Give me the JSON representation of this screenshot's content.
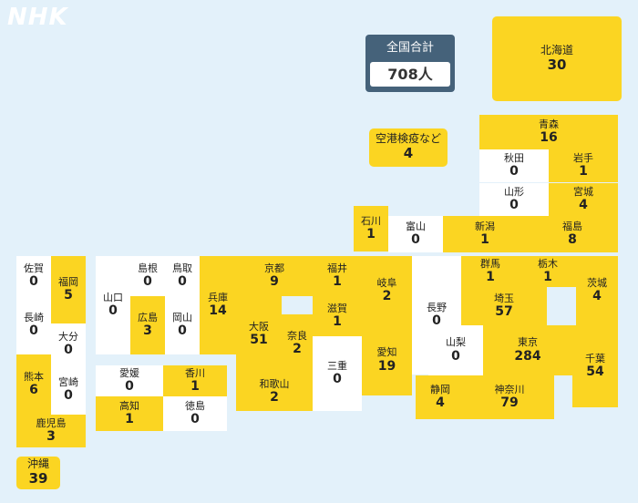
{
  "brand": "NHK",
  "total": {
    "label": "全国合計",
    "value": "708人"
  },
  "airport": {
    "name": "空港検疫など",
    "count": "4"
  },
  "colors": {
    "background": "#e3f1fa",
    "case_fill": "#fbd522",
    "zero_fill": "#ffffff",
    "total_box": "#45627a"
  },
  "prefectures": [
    {
      "id": "hokkaido",
      "name": "北海道",
      "count": "30"
    },
    {
      "id": "aomori",
      "name": "青森",
      "count": "16"
    },
    {
      "id": "akita",
      "name": "秋田",
      "count": "0"
    },
    {
      "id": "iwate",
      "name": "岩手",
      "count": "1"
    },
    {
      "id": "yamagata",
      "name": "山形",
      "count": "0"
    },
    {
      "id": "miyagi",
      "name": "宮城",
      "count": "4"
    },
    {
      "id": "ishikawa",
      "name": "石川",
      "count": "1"
    },
    {
      "id": "toyama",
      "name": "富山",
      "count": "0"
    },
    {
      "id": "niigata",
      "name": "新潟",
      "count": "1"
    },
    {
      "id": "fukushima",
      "name": "福島",
      "count": "8"
    },
    {
      "id": "saga",
      "name": "佐賀",
      "count": "0"
    },
    {
      "id": "fukuoka",
      "name": "福岡",
      "count": "5"
    },
    {
      "id": "yamaguchi",
      "name": "山口",
      "count": "0"
    },
    {
      "id": "shimane",
      "name": "島根",
      "count": "0"
    },
    {
      "id": "tottori",
      "name": "鳥取",
      "count": "0"
    },
    {
      "id": "hyogo",
      "name": "兵庫",
      "count": "14"
    },
    {
      "id": "kyoto",
      "name": "京都",
      "count": "9"
    },
    {
      "id": "fukui",
      "name": "福井",
      "count": "1"
    },
    {
      "id": "gifu",
      "name": "岐阜",
      "count": "2"
    },
    {
      "id": "nagano",
      "name": "長野",
      "count": "0"
    },
    {
      "id": "gunma",
      "name": "群馬",
      "count": "1"
    },
    {
      "id": "tochigi",
      "name": "栃木",
      "count": "1"
    },
    {
      "id": "ibaraki",
      "name": "茨城",
      "count": "4"
    },
    {
      "id": "nagasaki",
      "name": "長崎",
      "count": "0"
    },
    {
      "id": "oita",
      "name": "大分",
      "count": "0"
    },
    {
      "id": "hiroshima",
      "name": "広島",
      "count": "3"
    },
    {
      "id": "okayama",
      "name": "岡山",
      "count": "0"
    },
    {
      "id": "osaka",
      "name": "大阪",
      "count": "51"
    },
    {
      "id": "nara",
      "name": "奈良",
      "count": "2"
    },
    {
      "id": "shiga",
      "name": "滋賀",
      "count": "1"
    },
    {
      "id": "saitama",
      "name": "埼玉",
      "count": "57"
    },
    {
      "id": "kumamoto",
      "name": "熊本",
      "count": "6"
    },
    {
      "id": "miyazaki",
      "name": "宮崎",
      "count": "0"
    },
    {
      "id": "ehime",
      "name": "愛媛",
      "count": "0"
    },
    {
      "id": "kagawa",
      "name": "香川",
      "count": "1"
    },
    {
      "id": "mie",
      "name": "三重",
      "count": "0"
    },
    {
      "id": "aichi",
      "name": "愛知",
      "count": "19"
    },
    {
      "id": "yamanashi",
      "name": "山梨",
      "count": "0"
    },
    {
      "id": "tokyo",
      "name": "東京",
      "count": "284"
    },
    {
      "id": "chiba",
      "name": "千葉",
      "count": "54"
    },
    {
      "id": "kochi",
      "name": "高知",
      "count": "1"
    },
    {
      "id": "tokushima",
      "name": "徳島",
      "count": "0"
    },
    {
      "id": "wakayama",
      "name": "和歌山",
      "count": "2"
    },
    {
      "id": "shizuoka",
      "name": "静岡",
      "count": "4"
    },
    {
      "id": "kanagawa",
      "name": "神奈川",
      "count": "79"
    },
    {
      "id": "kagoshima",
      "name": "鹿児島",
      "count": "3"
    },
    {
      "id": "okinawa",
      "name": "沖縄",
      "count": "39"
    }
  ]
}
